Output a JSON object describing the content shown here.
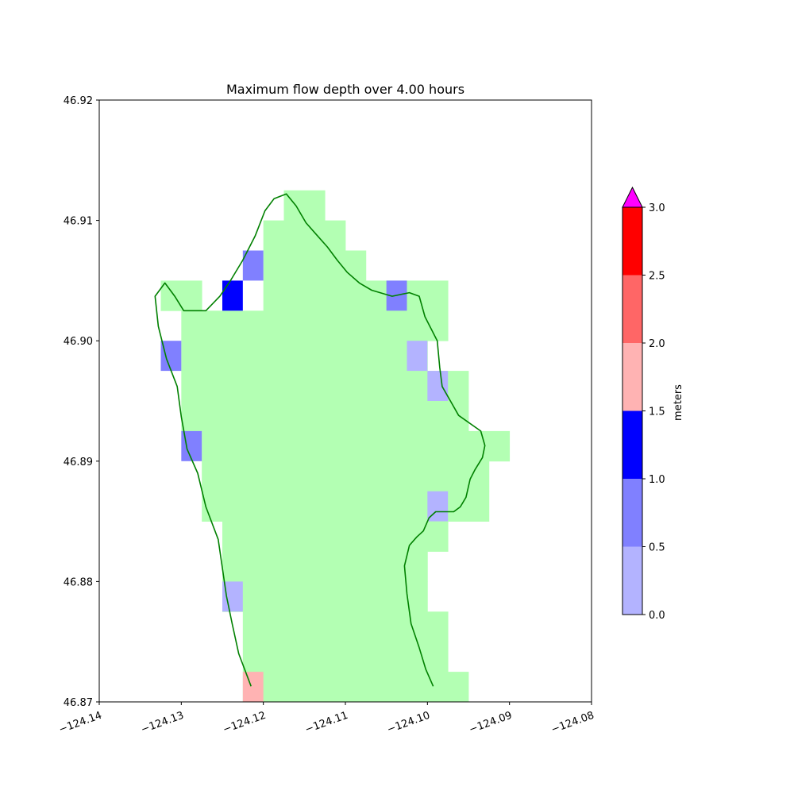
{
  "chart_data": {
    "type": "heatmap",
    "title": "Maximum flow depth over 4.00 hours",
    "xlabel": "",
    "ylabel": "",
    "xlim": [
      -124.14,
      -124.08
    ],
    "ylim": [
      46.87,
      46.92
    ],
    "x_ticks": [
      "−124.14",
      "−124.13",
      "−124.12",
      "−124.11",
      "−124.10",
      "−124.09",
      "−124.08"
    ],
    "x_tick_values": [
      -124.14,
      -124.13,
      -124.12,
      -124.11,
      -124.1,
      -124.09,
      -124.08
    ],
    "y_ticks": [
      "46.87",
      "46.88",
      "46.89",
      "46.90",
      "46.91",
      "46.92"
    ],
    "y_tick_values": [
      46.87,
      46.88,
      46.89,
      46.9,
      46.91,
      46.92
    ],
    "grid": false,
    "colorbar": {
      "label": "meters",
      "ticks": [
        "0.0",
        "0.5",
        "1.0",
        "1.5",
        "2.0",
        "2.5",
        "3.0"
      ],
      "tick_values": [
        0.0,
        0.5,
        1.0,
        1.5,
        2.0,
        2.5,
        3.0
      ],
      "bins": [
        {
          "min": 0.0,
          "max": 0.5,
          "color": "#b3b3ff"
        },
        {
          "min": 0.5,
          "max": 1.0,
          "color": "#8080ff"
        },
        {
          "min": 1.0,
          "max": 1.5,
          "color": "#0000ff"
        },
        {
          "min": 1.5,
          "max": 2.0,
          "color": "#ffb3b3"
        },
        {
          "min": 2.0,
          "max": 2.5,
          "color": "#ff6666"
        },
        {
          "min": 2.5,
          "max": 3.0,
          "color": "#ff0000"
        }
      ],
      "over_color": "#ff00ff",
      "extend": "max"
    },
    "dry_color": "#b3ffb3",
    "cells": {
      "cell_size_deg": 0.0025,
      "green_rows": [
        {
          "y": 46.91,
          "x": [
            -124.1175,
            -124.115
          ]
        },
        {
          "y": 46.9075,
          "x": [
            -124.12,
            -124.1125
          ]
        },
        {
          "y": 46.905,
          "x": [
            -124.12,
            -124.11
          ]
        },
        {
          "y": 46.9025,
          "x": [
            -124.1325,
            -124.13
          ]
        },
        {
          "y": 46.9025,
          "x": [
            -124.12,
            -124.1
          ]
        },
        {
          "y": 46.9,
          "x": [
            -124.13,
            -124.1
          ]
        },
        {
          "y": 46.8975,
          "x": [
            -124.13,
            -124.1025
          ]
        },
        {
          "y": 46.895,
          "x": [
            -124.13,
            -124.0975
          ]
        },
        {
          "y": 46.8925,
          "x": [
            -124.13,
            -124.0975
          ]
        },
        {
          "y": 46.89,
          "x": [
            -124.1275,
            -124.0925
          ]
        },
        {
          "y": 46.8875,
          "x": [
            -124.1275,
            -124.095
          ]
        },
        {
          "y": 46.885,
          "x": [
            -124.1275,
            -124.095
          ]
        },
        {
          "y": 46.8825,
          "x": [
            -124.125,
            -124.1
          ]
        },
        {
          "y": 46.88,
          "x": [
            -124.125,
            -124.1025
          ]
        },
        {
          "y": 46.8775,
          "x": [
            -124.125,
            -124.1025
          ]
        },
        {
          "y": 46.875,
          "x": [
            -124.1225,
            -124.1
          ]
        },
        {
          "y": 46.8725,
          "x": [
            -124.1225,
            -124.1
          ]
        },
        {
          "y": 46.87,
          "x": [
            -124.1225,
            -124.0975
          ]
        }
      ],
      "depth_cells": [
        {
          "x": -124.1225,
          "y": 46.905,
          "value": 0.75
        },
        {
          "x": -124.125,
          "y": 46.9025,
          "value": 1.25
        },
        {
          "x": -124.105,
          "y": 46.9025,
          "value": 0.75
        },
        {
          "x": -124.1325,
          "y": 46.8975,
          "value": 0.75
        },
        {
          "x": -124.1025,
          "y": 46.8975,
          "value": 0.25
        },
        {
          "x": -124.1,
          "y": 46.895,
          "value": 0.25
        },
        {
          "x": -124.13,
          "y": 46.89,
          "value": 0.75
        },
        {
          "x": -124.1,
          "y": 46.885,
          "value": 0.25
        },
        {
          "x": -124.125,
          "y": 46.8775,
          "value": 0.25
        },
        {
          "x": -124.1225,
          "y": 46.87,
          "value": 1.75
        }
      ]
    },
    "boundary_line": {
      "color": "#008000",
      "points": [
        [
          -124.1215,
          46.8713
        ],
        [
          -124.123,
          46.874
        ],
        [
          -124.1238,
          46.8765
        ],
        [
          -124.1245,
          46.8788
        ],
        [
          -124.1255,
          46.8835
        ],
        [
          -124.127,
          46.8862
        ],
        [
          -124.128,
          46.889
        ],
        [
          -124.1293,
          46.891
        ],
        [
          -124.13,
          46.8937
        ],
        [
          -124.1305,
          46.8962
        ],
        [
          -124.1318,
          46.8985
        ],
        [
          -124.1328,
          46.9012
        ],
        [
          -124.1332,
          46.9037
        ],
        [
          -124.132,
          46.9048
        ],
        [
          -124.1308,
          46.9037
        ],
        [
          -124.1297,
          46.9025
        ],
        [
          -124.127,
          46.9025
        ],
        [
          -124.1253,
          46.9037
        ],
        [
          -124.124,
          46.905
        ],
        [
          -124.1225,
          46.9067
        ],
        [
          -124.121,
          46.9087
        ],
        [
          -124.1198,
          46.9108
        ],
        [
          -124.1187,
          46.9118
        ],
        [
          -124.1172,
          46.9122
        ],
        [
          -124.116,
          46.9112
        ],
        [
          -124.1148,
          46.9098
        ],
        [
          -124.1135,
          46.9088
        ],
        [
          -124.1122,
          46.9078
        ],
        [
          -124.111,
          46.9067
        ],
        [
          -124.1098,
          46.9057
        ],
        [
          -124.1083,
          46.9048
        ],
        [
          -124.1068,
          46.9042
        ],
        [
          -124.1043,
          46.9037
        ],
        [
          -124.1022,
          46.904
        ],
        [
          -124.101,
          46.9037
        ],
        [
          -124.1003,
          46.902
        ],
        [
          -124.0988,
          46.9
        ],
        [
          -124.0985,
          46.8978
        ],
        [
          -124.0982,
          46.8962
        ],
        [
          -124.0972,
          46.895
        ],
        [
          -124.0962,
          46.8938
        ],
        [
          -124.0935,
          46.8925
        ],
        [
          -124.093,
          46.8913
        ],
        [
          -124.0933,
          46.8903
        ],
        [
          -124.0942,
          46.8893
        ],
        [
          -124.0948,
          46.8885
        ],
        [
          -124.0953,
          46.887
        ],
        [
          -124.096,
          46.8862
        ],
        [
          -124.0968,
          46.8858
        ],
        [
          -124.099,
          46.8858
        ],
        [
          -124.0998,
          46.8853
        ],
        [
          -124.1005,
          46.8842
        ],
        [
          -124.1013,
          46.8837
        ],
        [
          -124.1022,
          46.883
        ],
        [
          -124.1028,
          46.8813
        ],
        [
          -124.1025,
          46.879
        ],
        [
          -124.102,
          46.8765
        ],
        [
          -124.101,
          46.8745
        ],
        [
          -124.1002,
          46.8727
        ],
        [
          -124.0993,
          46.8713
        ]
      ]
    }
  }
}
